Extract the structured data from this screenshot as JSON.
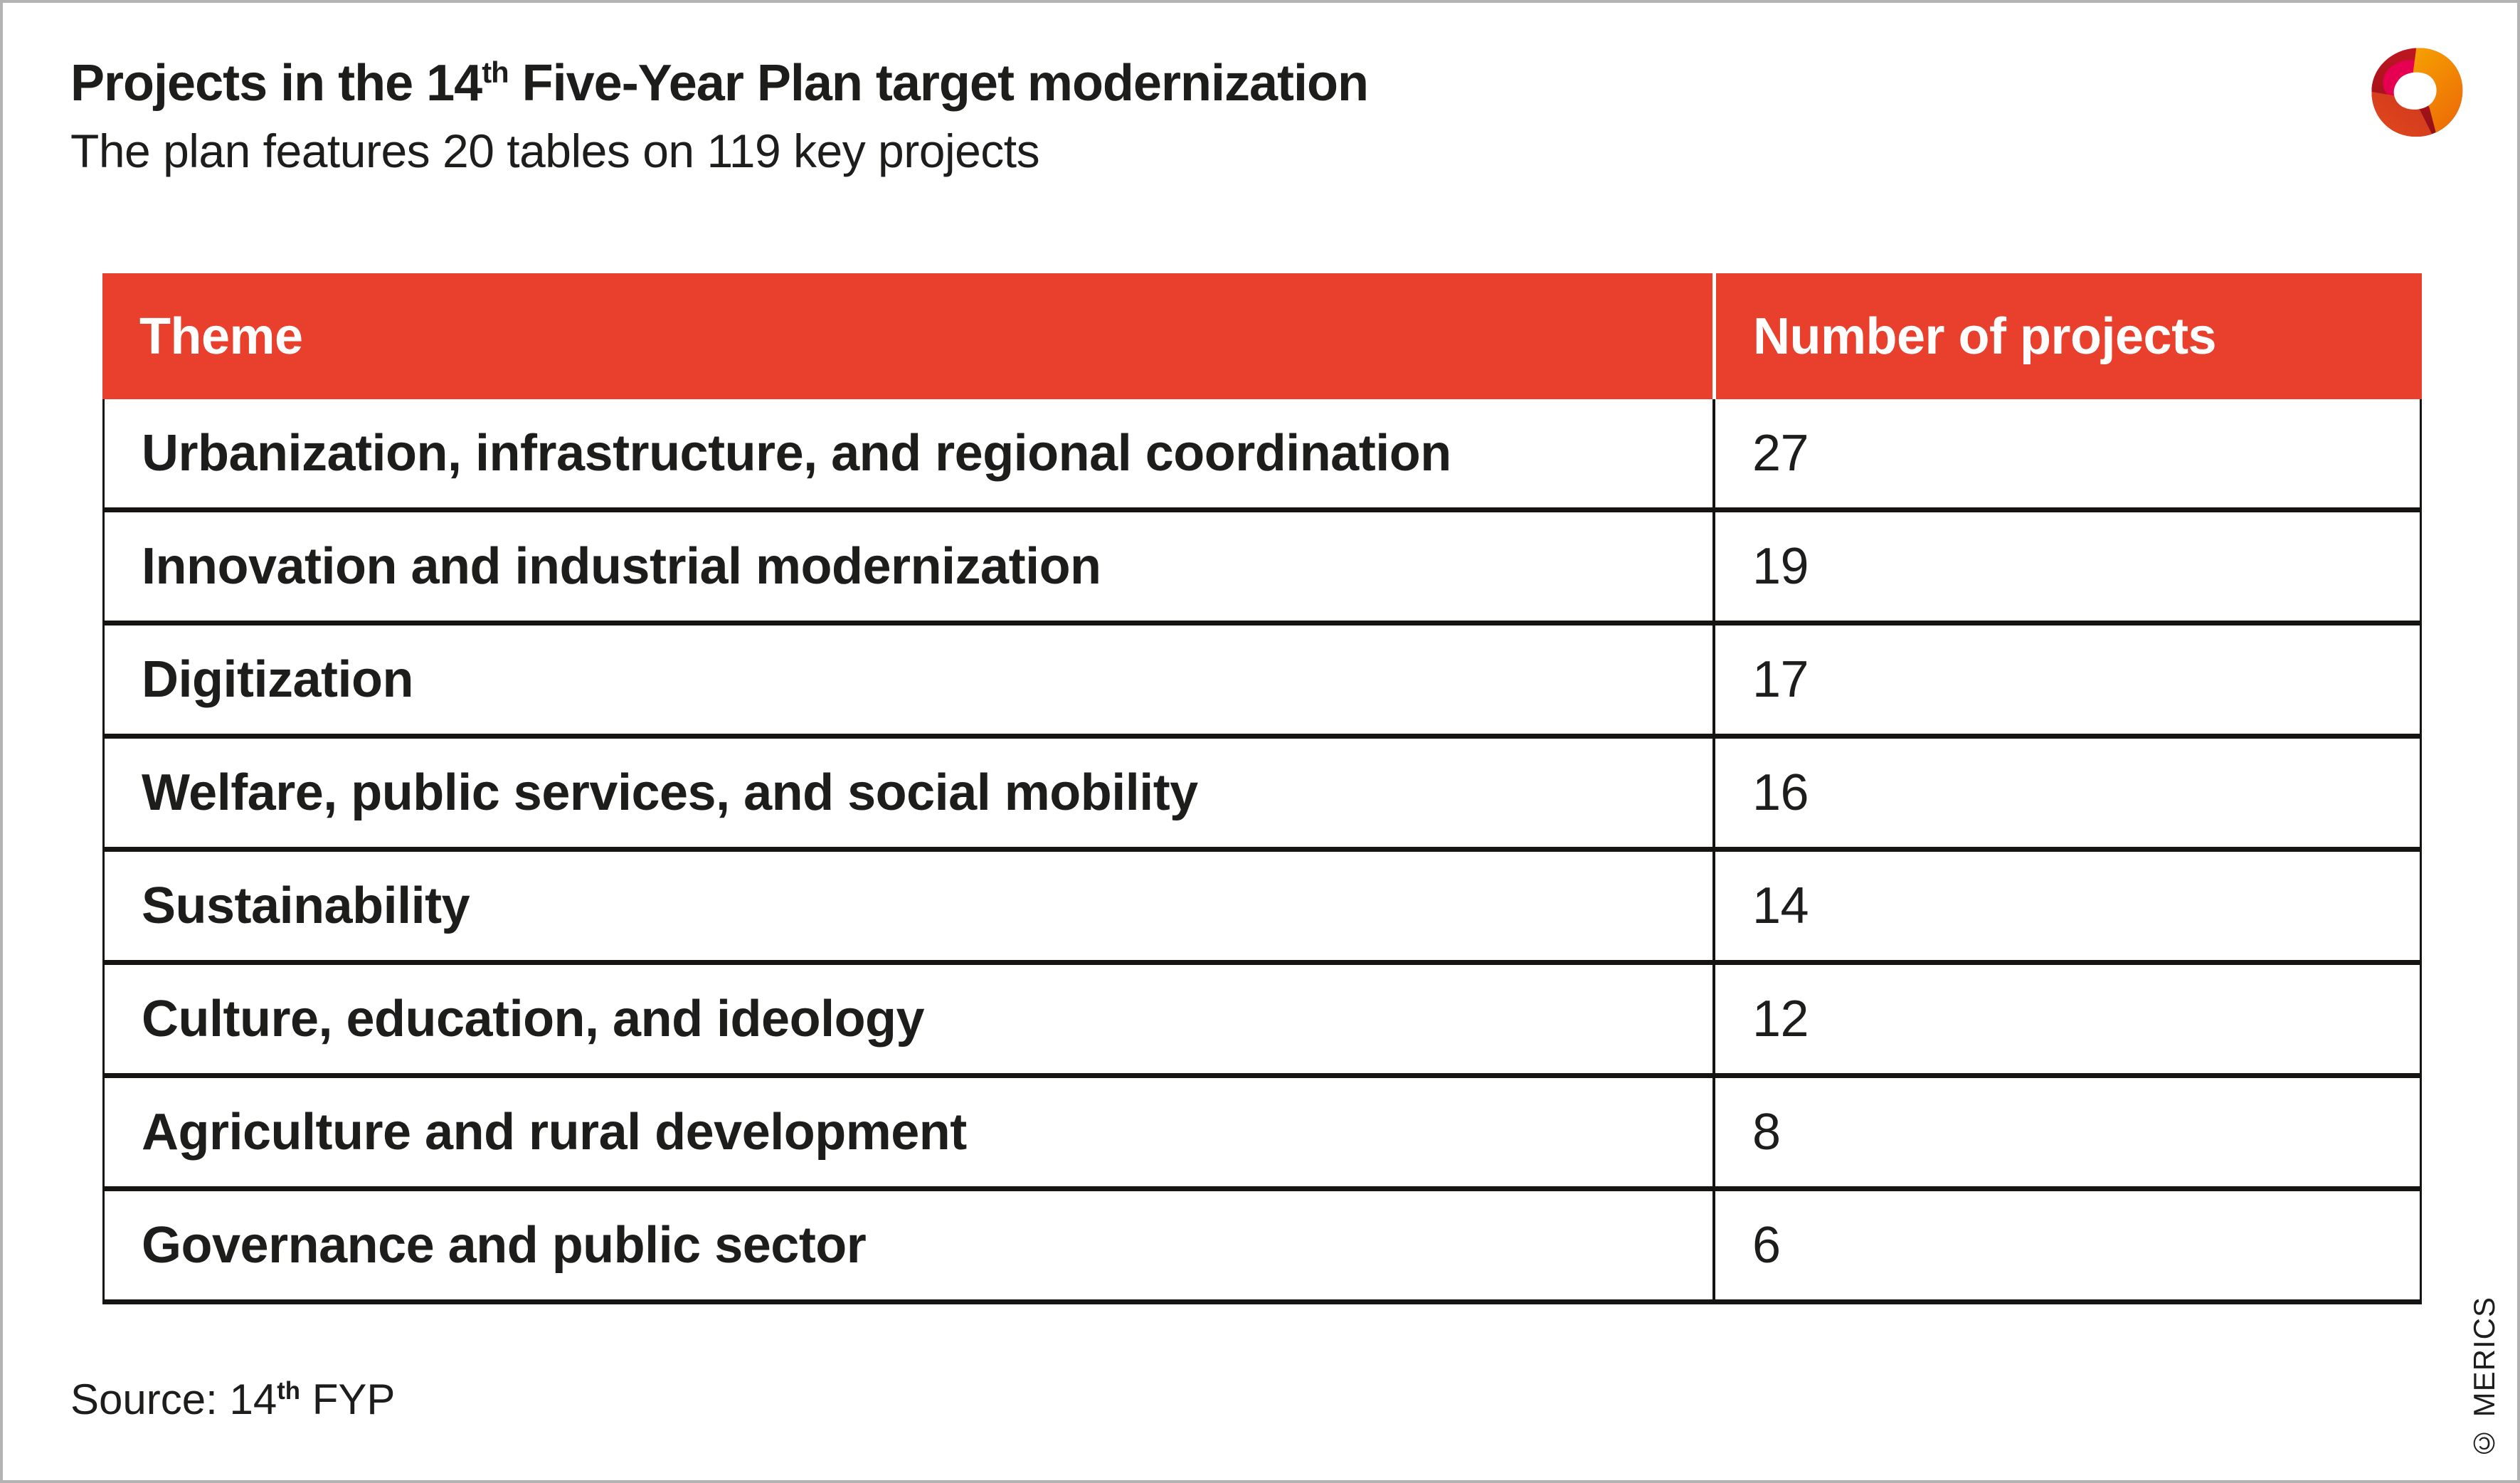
{
  "header": {
    "title_prefix": "Projects in the 14",
    "title_sup": "th",
    "title_suffix": " Five-Year Plan target modernization",
    "subtitle": "The plan features 20 tables on 119 key projects"
  },
  "chart_data": {
    "type": "table",
    "title": "Projects in the 14th Five-Year Plan target modernization",
    "subtitle": "The plan features 20 tables on 119 key projects",
    "columns": [
      "Theme",
      "Number of projects"
    ],
    "rows": [
      [
        "Urbanization, infrastructure, and regional coordination",
        27
      ],
      [
        "Innovation and industrial modernization",
        19
      ],
      [
        "Digitization",
        17
      ],
      [
        "Welfare, public services, and social mobility",
        16
      ],
      [
        "Sustainability",
        14
      ],
      [
        "Culture, education, and ideology",
        12
      ],
      [
        "Agriculture and rural development",
        8
      ],
      [
        "Governance and public sector",
        6
      ]
    ],
    "source": "Source: 14th FYP"
  },
  "footer": {
    "source_prefix": "Source: 14",
    "source_sup": "th",
    "source_suffix": " FYP",
    "copyright": "© MERICS"
  },
  "colors": {
    "accent_red": "#E8402D",
    "header_text": "#FFFFFF",
    "body_text": "#1D1D1B",
    "table_border": "#161412",
    "frame_border": "#B3B3B3",
    "logo_dark_red": "#B5121B",
    "logo_magenta": "#E0004D",
    "logo_orange": "#F59C00",
    "logo_orange_red": "#E8452C"
  }
}
